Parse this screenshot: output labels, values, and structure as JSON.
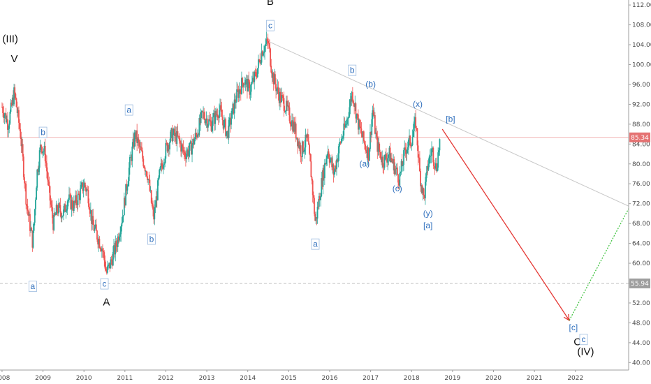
{
  "chart_data": {
    "type": "line",
    "subtype": "candlestick-price-chart-with-elliott-wave-annotations",
    "title": "",
    "xlabel": "",
    "ylabel": "",
    "x_ticks": [
      "2008",
      "2009",
      "2010",
      "2011",
      "2012",
      "2013",
      "2014",
      "2015",
      "2016",
      "2017",
      "2018",
      "2019",
      "2020",
      "2021",
      "2022"
    ],
    "y_ticks": [
      "112.00",
      "108.00",
      "104.00",
      "100.00",
      "96.00",
      "92.00",
      "88.00",
      "84.00",
      "80.00",
      "76.00",
      "72.00",
      "68.00",
      "64.00",
      "60.00",
      "56.00",
      "52.00",
      "48.00",
      "44.00",
      "40.00"
    ],
    "xlim": [
      2007.95,
      2023.3
    ],
    "ylim": [
      38.5,
      113
    ],
    "colors": {
      "up": "#26a69a",
      "down": "#ef5350",
      "projection_down": "#e53935",
      "projection_up": "#43c443",
      "trendline": "#c8c8c8",
      "wave_label": "#2f6fbd",
      "current_price_badge": "#e57373",
      "level_badge": "#9e9e9e"
    },
    "series": [
      {
        "values": [
          [
            2008.0,
            91.5
          ],
          [
            2008.15,
            88.0
          ],
          [
            2008.3,
            94.5
          ],
          [
            2008.45,
            86.0
          ],
          [
            2008.6,
            72.0
          ],
          [
            2008.75,
            64.0
          ],
          [
            2008.85,
            78.0
          ],
          [
            2008.95,
            84.0
          ],
          [
            2009.05,
            82.0
          ],
          [
            2009.15,
            74.0
          ],
          [
            2009.25,
            68.0
          ],
          [
            2009.35,
            71.0
          ],
          [
            2009.5,
            70.0
          ],
          [
            2009.6,
            73.0
          ],
          [
            2009.75,
            71.5
          ],
          [
            2009.9,
            74.0
          ],
          [
            2010.0,
            76.0
          ],
          [
            2010.1,
            74.0
          ],
          [
            2010.2,
            68.0
          ],
          [
            2010.35,
            65.0
          ],
          [
            2010.45,
            63.0
          ],
          [
            2010.55,
            58.0
          ],
          [
            2010.65,
            60.0
          ],
          [
            2010.8,
            64.0
          ],
          [
            2010.95,
            70.0
          ],
          [
            2011.1,
            79.0
          ],
          [
            2011.25,
            86.0
          ],
          [
            2011.4,
            82.0
          ],
          [
            2011.55,
            78.0
          ],
          [
            2011.7,
            69.0
          ],
          [
            2011.85,
            78.0
          ],
          [
            2012.0,
            83.0
          ],
          [
            2012.15,
            86.0
          ],
          [
            2012.3,
            85.0
          ],
          [
            2012.45,
            82.0
          ],
          [
            2012.6,
            83.0
          ],
          [
            2012.75,
            86.0
          ],
          [
            2012.9,
            90.0
          ],
          [
            2013.1,
            88.0
          ],
          [
            2013.3,
            91.0
          ],
          [
            2013.5,
            86.0
          ],
          [
            2013.7,
            93.0
          ],
          [
            2013.9,
            97.0
          ],
          [
            2014.05,
            95.0
          ],
          [
            2014.2,
            98.0
          ],
          [
            2014.35,
            103.0
          ],
          [
            2014.5,
            104.5
          ],
          [
            2014.6,
            98.0
          ],
          [
            2014.75,
            94.0
          ],
          [
            2014.9,
            92.0
          ],
          [
            2015.0,
            90.0
          ],
          [
            2015.15,
            87.0
          ],
          [
            2015.3,
            82.5
          ],
          [
            2015.45,
            85.0
          ],
          [
            2015.55,
            78.0
          ],
          [
            2015.65,
            68.0
          ],
          [
            2015.8,
            76.0
          ],
          [
            2015.95,
            83.0
          ],
          [
            2016.1,
            78.0
          ],
          [
            2016.25,
            84.0
          ],
          [
            2016.4,
            88.0
          ],
          [
            2016.55,
            94.5
          ],
          [
            2016.7,
            88.0
          ],
          [
            2016.85,
            84.0
          ],
          [
            2016.95,
            82.0
          ],
          [
            2017.05,
            91.0
          ],
          [
            2017.15,
            84.0
          ],
          [
            2017.3,
            80.5
          ],
          [
            2017.45,
            82.0
          ],
          [
            2017.6,
            79.0
          ],
          [
            2017.7,
            77.0
          ],
          [
            2017.85,
            83.0
          ],
          [
            2018.0,
            85.0
          ],
          [
            2018.1,
            88.5
          ],
          [
            2018.2,
            78.0
          ],
          [
            2018.3,
            73.0
          ],
          [
            2018.4,
            80.0
          ],
          [
            2018.5,
            83.0
          ],
          [
            2018.6,
            79.0
          ],
          [
            2018.7,
            85.34
          ]
        ]
      }
    ],
    "levels": [
      {
        "value": 85.34,
        "label": "85.34",
        "style": "solid",
        "color": "#f2b3b3"
      },
      {
        "value": 55.94,
        "label": "55.94",
        "style": "dashed",
        "color": "#bdbdbd"
      }
    ],
    "trendline": {
      "from": [
        2014.55,
        104.5
      ],
      "to": [
        2023.3,
        71.5
      ]
    },
    "projection": {
      "down": {
        "from": [
          2018.75,
          87.0
        ],
        "to": [
          2021.85,
          48.5
        ]
      },
      "up": {
        "from": [
          2021.85,
          48.5
        ],
        "to": [
          2023.3,
          71.0
        ]
      }
    },
    "annotations": [
      {
        "text": "(III)",
        "x": 2008.2,
        "y": 104.5,
        "style": "black"
      },
      {
        "text": "V",
        "x": 2008.3,
        "y": 100.5,
        "style": "black"
      },
      {
        "text": "B",
        "x": 2014.55,
        "y": 112.0,
        "style": "black"
      },
      {
        "text": "A",
        "x": 2010.55,
        "y": 51.5,
        "style": "black"
      },
      {
        "text": "C",
        "x": 2022.05,
        "y": 43.5,
        "style": "black"
      },
      {
        "text": "(IV)",
        "x": 2022.25,
        "y": 41.5,
        "style": "black"
      },
      {
        "text": "a",
        "x": 2008.75,
        "y": 55.0,
        "style": "boxed"
      },
      {
        "text": "b",
        "x": 2009.0,
        "y": 86.0,
        "style": "boxed"
      },
      {
        "text": "c",
        "x": 2010.5,
        "y": 55.5,
        "style": "boxed"
      },
      {
        "text": "a",
        "x": 2011.1,
        "y": 90.5,
        "style": "boxed"
      },
      {
        "text": "b",
        "x": 2011.65,
        "y": 64.5,
        "style": "boxed"
      },
      {
        "text": "c",
        "x": 2014.55,
        "y": 107.5,
        "style": "boxed"
      },
      {
        "text": "a",
        "x": 2015.65,
        "y": 63.5,
        "style": "boxed"
      },
      {
        "text": "b",
        "x": 2016.55,
        "y": 98.5,
        "style": "boxed"
      },
      {
        "text": "(b)",
        "x": 2017.0,
        "y": 95.5,
        "style": "blue"
      },
      {
        "text": "(a)",
        "x": 2016.85,
        "y": 79.5,
        "style": "blue"
      },
      {
        "text": "(c)",
        "x": 2017.65,
        "y": 74.5,
        "style": "blue"
      },
      {
        "text": "(x)",
        "x": 2018.15,
        "y": 91.5,
        "style": "blue"
      },
      {
        "text": "[b]",
        "x": 2018.95,
        "y": 88.5,
        "style": "blue"
      },
      {
        "text": "(y)",
        "x": 2018.4,
        "y": 69.5,
        "style": "blue"
      },
      {
        "text": "[a]",
        "x": 2018.4,
        "y": 67.0,
        "style": "blue"
      },
      {
        "text": "[c]",
        "x": 2021.95,
        "y": 46.5,
        "style": "blue"
      },
      {
        "text": "c",
        "x": 2022.2,
        "y": 44.3,
        "style": "boxed"
      }
    ]
  }
}
